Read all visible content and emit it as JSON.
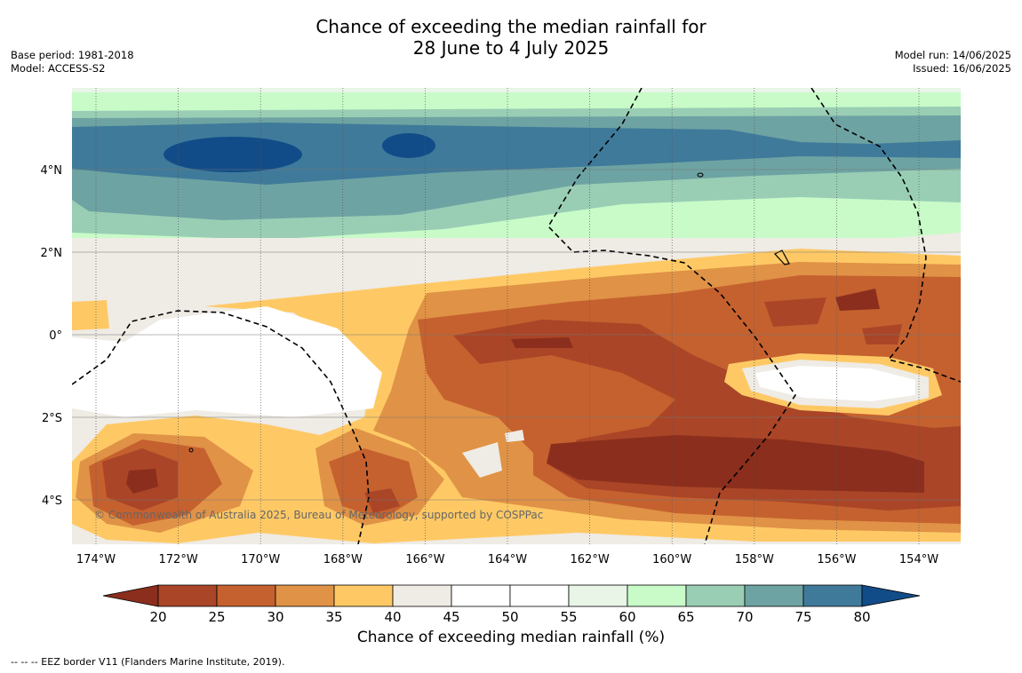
{
  "title": {
    "line1": "Chance of exceeding the median rainfall for",
    "line2": "28 June to 4 July 2025"
  },
  "meta_left": {
    "base_period": "Base period: 1981-2018",
    "model": "Model: ACCESS-S2"
  },
  "meta_right": {
    "model_run": "Model run: 14/06/2025",
    "issued": "Issued: 16/06/2025"
  },
  "map": {
    "lon_labels": [
      "174°W",
      "172°W",
      "170°W",
      "168°W",
      "166°W",
      "164°W",
      "162°W",
      "160°W",
      "158°W",
      "156°W",
      "154°W"
    ],
    "lat_labels": [
      "4°N",
      "2°N",
      "0°",
      "2°S",
      "4°S"
    ],
    "copyright": "© Commonwealth of Australia 2025, Bureau of Meteorology, supported by COSPPac"
  },
  "colorbar": {
    "ticks": [
      "20",
      "25",
      "30",
      "35",
      "40",
      "45",
      "50",
      "55",
      "60",
      "65",
      "70",
      "75",
      "80"
    ],
    "colors": [
      "#8b2e1d",
      "#aa4527",
      "#c5612f",
      "#e09246",
      "#fec965",
      "#efebe5",
      "#ffffff",
      "#ffffff",
      "#e8f5e7",
      "#c8fbc8",
      "#99ceb5",
      "#6ea3a3",
      "#3f7a9a",
      "#124c88"
    ],
    "label": "Chance of exceeding median rainfall (%)"
  },
  "footnote": "-- -- -- EEZ border V11 (Flanders Marine Institute, 2019)."
}
